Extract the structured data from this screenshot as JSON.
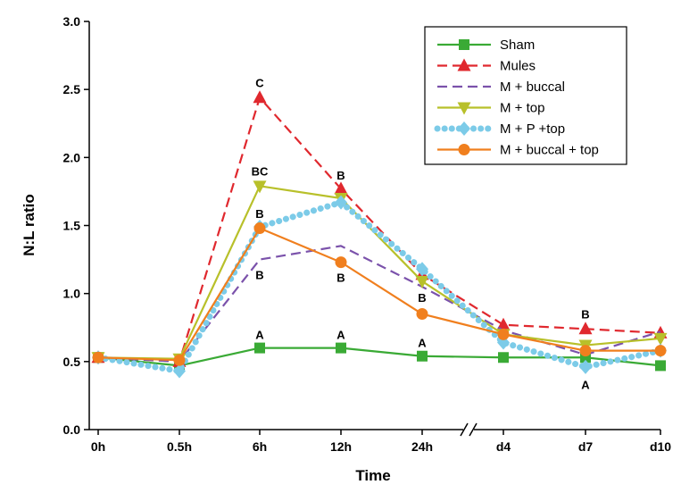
{
  "chart_data": {
    "type": "line",
    "xlabel": "Time",
    "ylabel": "N:L ratio",
    "categories": [
      "0h",
      "0.5h",
      "6h",
      "12h",
      "24h",
      "d4",
      "d7",
      "d10"
    ],
    "y_ticks": [
      "0.0",
      "0.5",
      "1.0",
      "1.5",
      "2.0",
      "2.5",
      "3.0"
    ],
    "ylim": [
      0,
      3
    ],
    "axis_break_between": [
      "24h",
      "d4"
    ],
    "axis_break_symbol": "//",
    "legend_position": "top-right",
    "series": [
      {
        "name": "Sham",
        "color": "#3aaa35",
        "dash": "solid",
        "marker": "square",
        "values": [
          0.53,
          0.47,
          0.6,
          0.6,
          0.54,
          0.53,
          0.53,
          0.47
        ]
      },
      {
        "name": "Mules",
        "color": "#e0282e",
        "dash": "dashed",
        "marker": "triangle-up",
        "values": [
          0.53,
          0.5,
          2.44,
          1.77,
          1.14,
          0.77,
          0.74,
          0.71
        ]
      },
      {
        "name": "M + buccal",
        "color": "#7b52ab",
        "dash": "dashed",
        "marker": "none",
        "values": [
          0.53,
          0.5,
          1.25,
          1.35,
          1.05,
          0.73,
          0.55,
          0.72
        ]
      },
      {
        "name": "M + top",
        "color": "#b8c02a",
        "dash": "solid",
        "marker": "triangle-down",
        "values": [
          0.53,
          0.52,
          1.79,
          1.7,
          1.09,
          0.7,
          0.62,
          0.67
        ]
      },
      {
        "name": "M + P +top",
        "color": "#7ccbe8",
        "dash": "dotted",
        "marker": "diamond",
        "values": [
          0.53,
          0.43,
          1.49,
          1.67,
          1.18,
          0.64,
          0.46,
          0.58
        ]
      },
      {
        "name": "M + buccal + top",
        "color": "#f07f1e",
        "dash": "solid",
        "marker": "circle",
        "values": [
          0.53,
          0.51,
          1.48,
          1.23,
          0.85,
          0.7,
          0.58,
          0.58
        ]
      }
    ],
    "annotations": [
      {
        "text": "C",
        "x": "6h",
        "y": 2.55
      },
      {
        "text": "BC",
        "x": "6h",
        "y": 1.9
      },
      {
        "text": "B",
        "x": "6h",
        "y": 1.59
      },
      {
        "text": "B",
        "x": "6h",
        "y": 1.14
      },
      {
        "text": "A",
        "x": "6h",
        "y": 0.7
      },
      {
        "text": "B",
        "x": "12h",
        "y": 1.87
      },
      {
        "text": "B",
        "x": "12h",
        "y": 1.12
      },
      {
        "text": "A",
        "x": "12h",
        "y": 0.7
      },
      {
        "text": "B",
        "x": "24h",
        "y": 0.97
      },
      {
        "text": "A",
        "x": "24h",
        "y": 0.64
      },
      {
        "text": "B",
        "x": "d7",
        "y": 0.85
      },
      {
        "text": "A",
        "x": "d7",
        "y": 0.33
      }
    ]
  }
}
